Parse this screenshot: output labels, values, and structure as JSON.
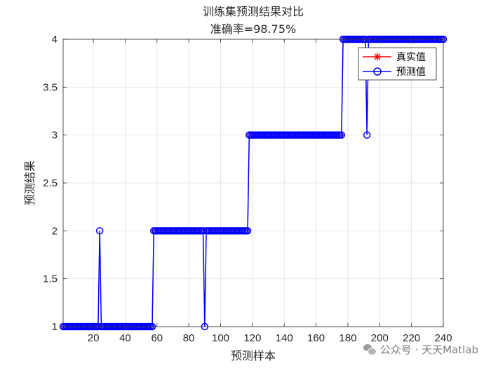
{
  "chart_data": {
    "type": "line",
    "title": "训练集预测结果对比",
    "subtitle": "准确率=98.75%",
    "xlabel": "预测样本",
    "ylabel": "预测结果",
    "xlim": [
      1,
      240
    ],
    "ylim": [
      1,
      4
    ],
    "xticks": [
      20,
      40,
      60,
      80,
      100,
      120,
      140,
      160,
      180,
      200,
      220,
      240
    ],
    "yticks": [
      1,
      1.5,
      2,
      2.5,
      3,
      3.5,
      4
    ],
    "xtick_labels": [
      "20",
      "40",
      "60",
      "80",
      "100",
      "120",
      "140",
      "160",
      "180",
      "200",
      "220",
      "240"
    ],
    "ytick_labels": [
      "1",
      "1.5",
      "2",
      "2.5",
      "3",
      "3.5",
      "4"
    ],
    "grid": true,
    "legend_position": "top-right",
    "segments": [
      {
        "from": 1,
        "to": 57,
        "true_class": 1
      },
      {
        "from": 58,
        "to": 117,
        "true_class": 2
      },
      {
        "from": 118,
        "to": 176,
        "true_class": 3
      },
      {
        "from": 177,
        "to": 240,
        "true_class": 4
      }
    ],
    "mispredictions": [
      {
        "x": 24,
        "predicted": 2
      },
      {
        "x": 90,
        "predicted": 1
      },
      {
        "x": 192,
        "predicted": 3
      }
    ],
    "series": [
      {
        "name": "真实值",
        "color": "#ff0000",
        "marker": "asterisk"
      },
      {
        "name": "预测值",
        "color": "#0000ff",
        "marker": "circle"
      }
    ]
  },
  "watermark": {
    "text": "公众号 · 天天Matlab"
  }
}
